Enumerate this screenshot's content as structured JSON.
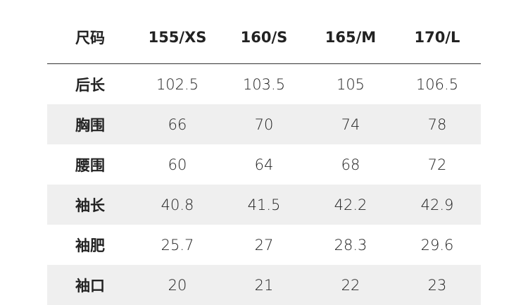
{
  "table": {
    "header": [
      "尺码",
      "155/XS",
      "160/S",
      "165/M",
      "170/L"
    ],
    "rows": [
      [
        "后长",
        "102.5",
        "103.5",
        "105",
        "106.5"
      ],
      [
        "胸围",
        "66",
        "70",
        "74",
        "78"
      ],
      [
        "腰围",
        "60",
        "64",
        "68",
        "72"
      ],
      [
        "袖长",
        "40.8",
        "41.5",
        "42.2",
        "42.9"
      ],
      [
        "袖肥",
        "25.7",
        "27",
        "28.3",
        "29.6"
      ],
      [
        "袖口",
        "20",
        "21",
        "22",
        "23"
      ]
    ]
  }
}
